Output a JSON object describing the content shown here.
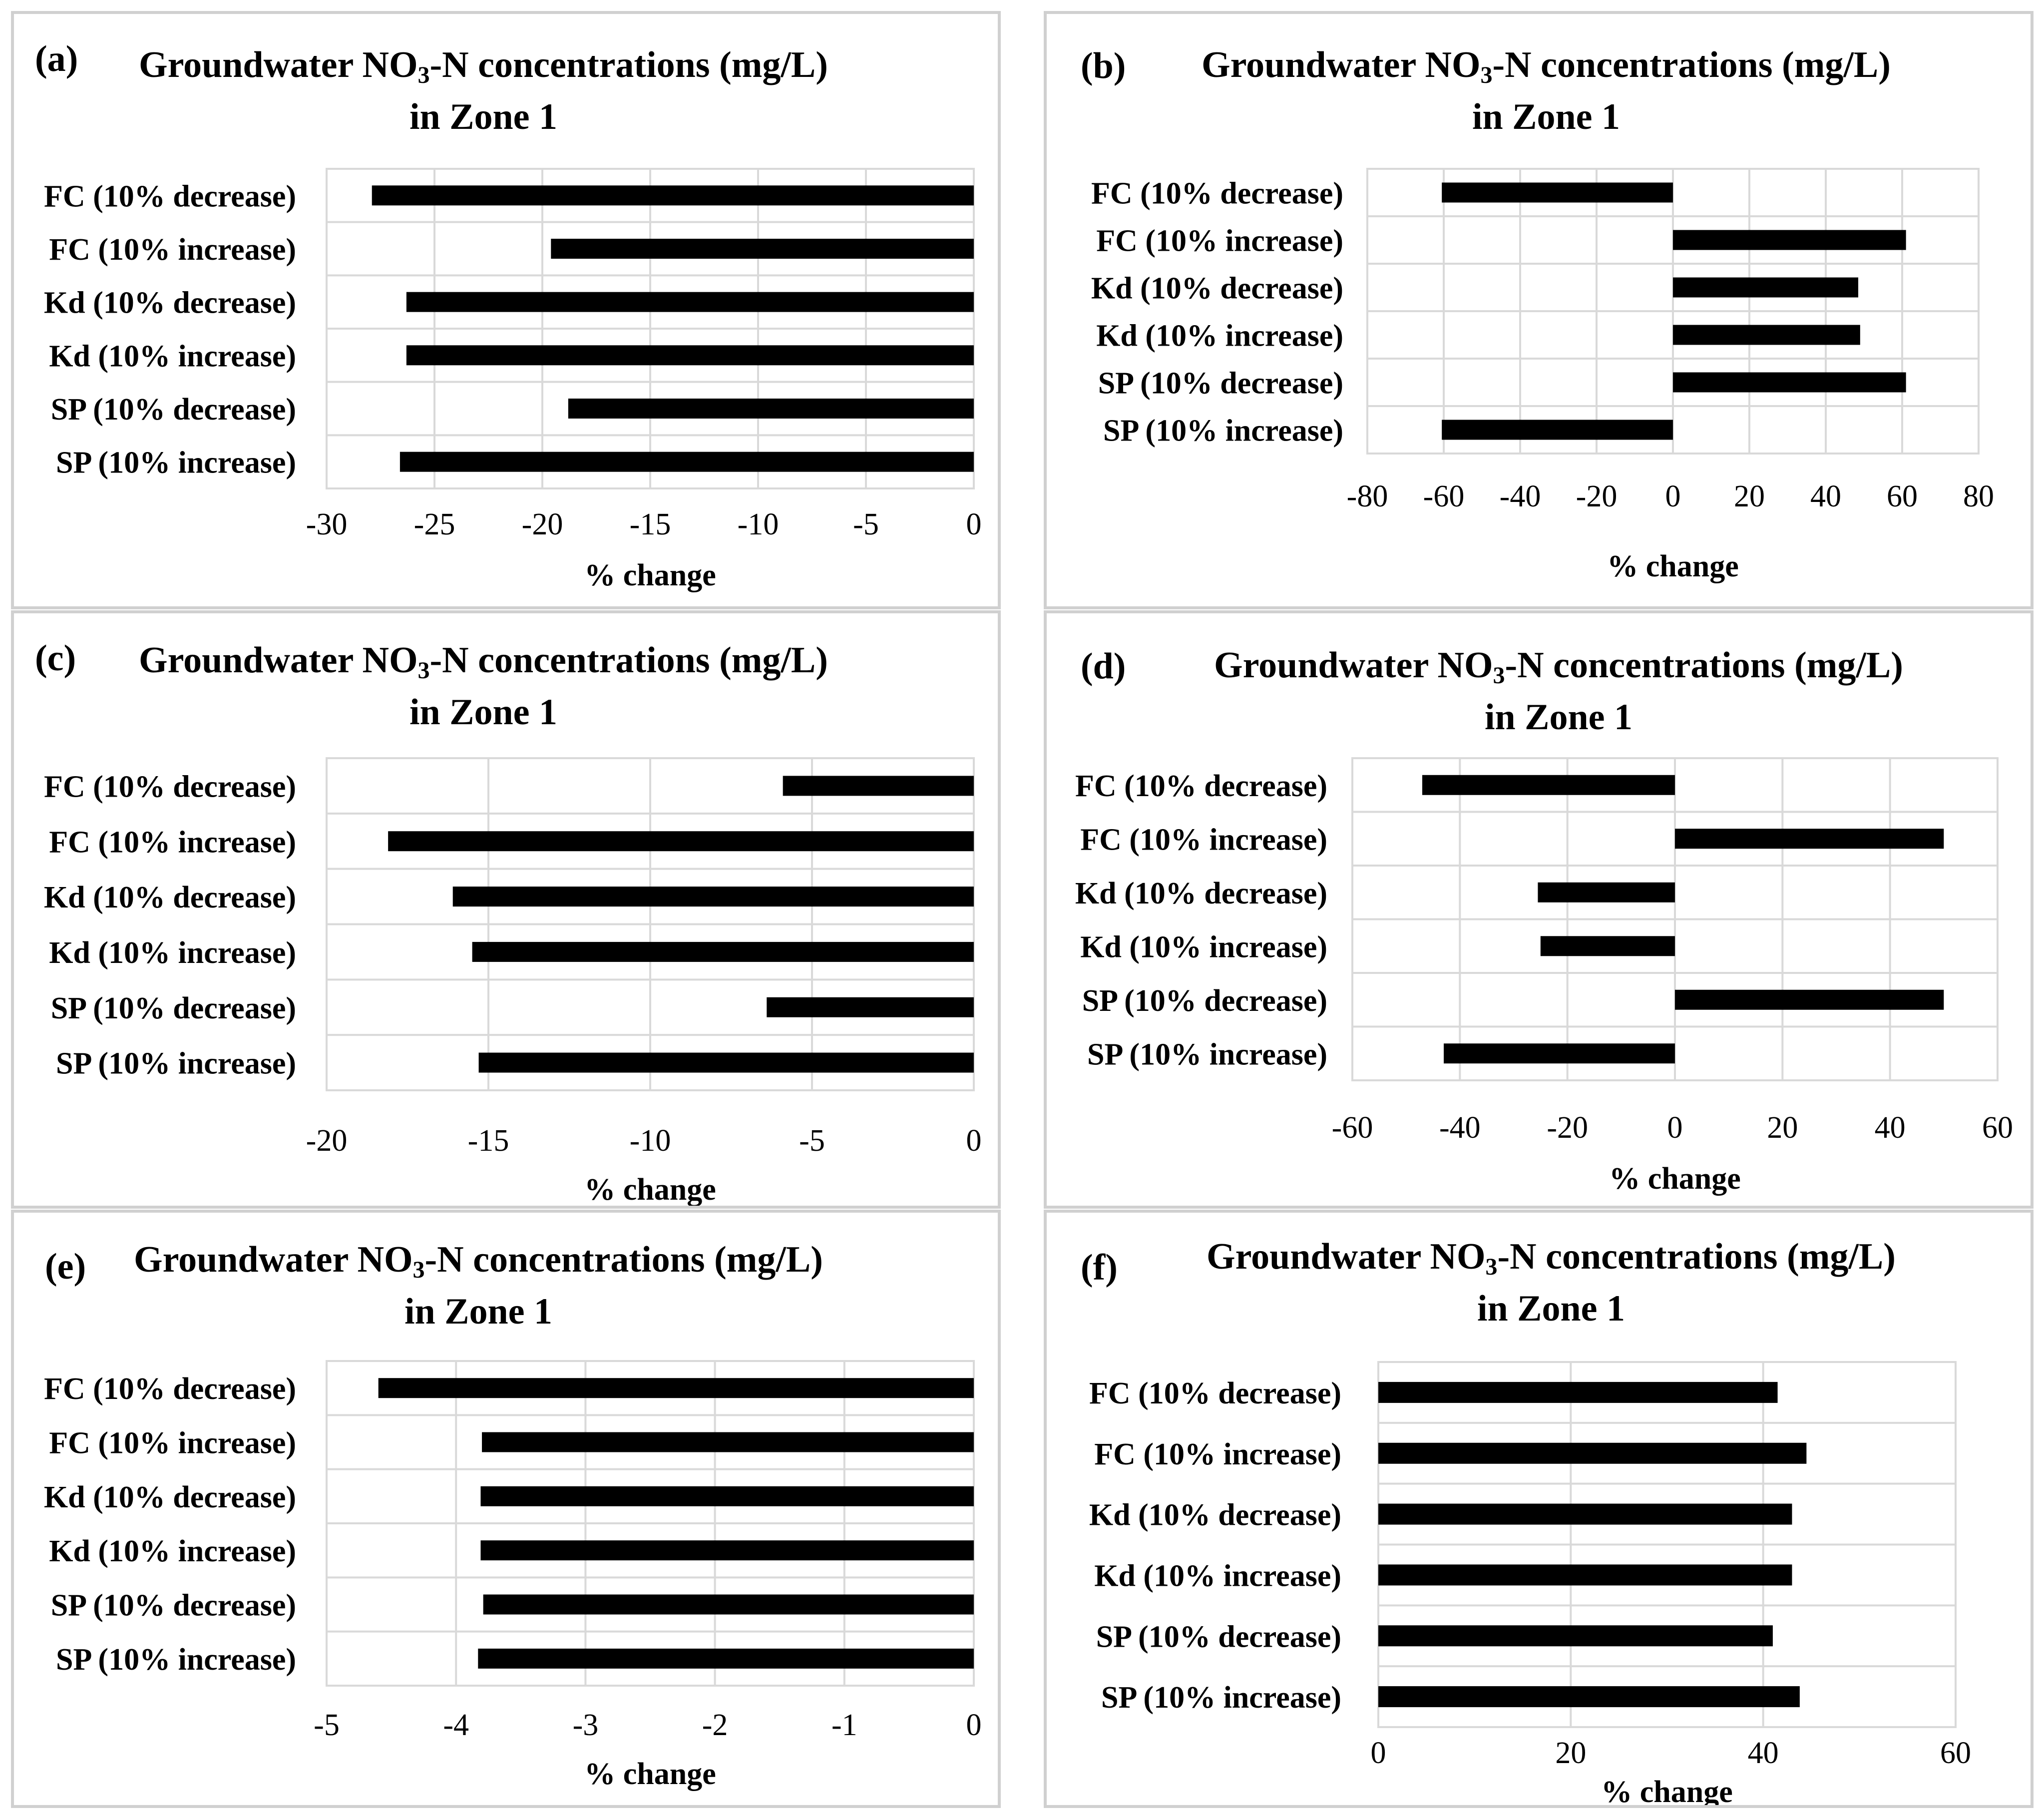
{
  "title": {
    "prefix": "Groundwater NO",
    "sub": "3",
    "suffix": "-N concentrations (mg/L)",
    "line2": "in Zone 1"
  },
  "categories": [
    "FC (10% decrease)",
    "FC (10% increase)",
    "Kd (10% decrease)",
    "Kd (10% increase)",
    "SP (10% decrease)",
    "SP (10% increase)"
  ],
  "xlabel": "% change",
  "colors": {
    "bar": "#000000",
    "grid": "#d9d9d9"
  },
  "panels": [
    {
      "label": "(a)"
    },
    {
      "label": "(b)"
    },
    {
      "label": "(c)"
    },
    {
      "label": "(d)"
    },
    {
      "label": "(e)"
    },
    {
      "label": "(f)"
    }
  ],
  "chart_data": [
    {
      "type": "bar",
      "orientation": "horizontal",
      "panel": "(a)",
      "title": "Groundwater NO3-N concentrations (mg/L) in Zone 1",
      "xlabel": "% change",
      "categories": [
        "FC (10% decrease)",
        "FC (10% increase)",
        "Kd (10% decrease)",
        "Kd (10% increase)",
        "SP (10% decrease)",
        "SP (10% increase)"
      ],
      "values": [
        -27.9,
        -19.6,
        -26.3,
        -26.3,
        -18.8,
        -26.6
      ],
      "xlim": [
        -30,
        0
      ],
      "ticks": [
        -30,
        -25,
        -20,
        -15,
        -10,
        -5,
        0
      ],
      "tick_labels": [
        "-30",
        "-25",
        "-20",
        "-15",
        "-10",
        "-5",
        "0"
      ]
    },
    {
      "type": "bar",
      "orientation": "horizontal",
      "panel": "(b)",
      "title": "Groundwater NO3-N concentrations (mg/L) in Zone 1",
      "xlabel": "% change",
      "categories": [
        "FC (10% decrease)",
        "FC (10% increase)",
        "Kd (10% decrease)",
        "Kd (10% increase)",
        "SP (10% decrease)",
        "SP (10% increase)"
      ],
      "values": [
        -60.5,
        61,
        48.5,
        49,
        61,
        -60.5
      ],
      "xlim": [
        -80,
        80
      ],
      "ticks": [
        -80,
        -60,
        -40,
        -20,
        0,
        20,
        40,
        60,
        80
      ],
      "tick_labels": [
        "-80",
        "-60",
        "-40",
        "-20",
        "0",
        "20",
        "40",
        "60",
        "80"
      ]
    },
    {
      "type": "bar",
      "orientation": "horizontal",
      "panel": "(c)",
      "title": "Groundwater NO3-N concentrations (mg/L) in Zone 1",
      "xlabel": "% change",
      "categories": [
        "FC (10% decrease)",
        "FC (10% increase)",
        "Kd (10% decrease)",
        "Kd (10% increase)",
        "SP (10% decrease)",
        "SP (10% increase)"
      ],
      "values": [
        -5.9,
        -18.1,
        -16.1,
        -15.5,
        -6.4,
        -15.3
      ],
      "xlim": [
        -20,
        0
      ],
      "ticks": [
        -20,
        -15,
        -10,
        -5,
        0
      ],
      "tick_labels": [
        "-20",
        "-15",
        "-10",
        "-5",
        "0"
      ]
    },
    {
      "type": "bar",
      "orientation": "horizontal",
      "panel": "(d)",
      "title": "Groundwater NO3-N concentrations (mg/L) in Zone 1",
      "xlabel": "% change",
      "categories": [
        "FC (10% decrease)",
        "FC (10% increase)",
        "Kd (10% decrease)",
        "Kd (10% increase)",
        "SP (10% decrease)",
        "SP (10% increase)"
      ],
      "values": [
        -47,
        50,
        -25.5,
        -25,
        50,
        -43
      ],
      "xlim": [
        -60,
        60
      ],
      "ticks": [
        -60,
        -40,
        -20,
        0,
        20,
        40,
        60
      ],
      "tick_labels": [
        "-60",
        "-40",
        "-20",
        "0",
        "20",
        "40",
        "60"
      ]
    },
    {
      "type": "bar",
      "orientation": "horizontal",
      "panel": "(e)",
      "title": "Groundwater NO3-N concentrations (mg/L) in Zone 1",
      "xlabel": "% change",
      "categories": [
        "FC (10% decrease)",
        "FC (10% increase)",
        "Kd (10% decrease)",
        "Kd (10% increase)",
        "SP (10% decrease)",
        "SP (10% increase)"
      ],
      "values": [
        -4.6,
        -3.8,
        -3.81,
        -3.81,
        -3.79,
        -3.83
      ],
      "xlim": [
        -5,
        0
      ],
      "ticks": [
        -5,
        -4,
        -3,
        -2,
        -1,
        0
      ],
      "tick_labels": [
        "-5",
        "-4",
        "-3",
        "-2",
        "-1",
        "0"
      ]
    },
    {
      "type": "bar",
      "orientation": "horizontal",
      "panel": "(f)",
      "title": "Groundwater NO3-N concentrations (mg/L) in Zone 1",
      "xlabel": "% change",
      "categories": [
        "FC (10% decrease)",
        "FC (10% increase)",
        "Kd (10% decrease)",
        "Kd (10% increase)",
        "SP (10% decrease)",
        "SP (10% increase)"
      ],
      "values": [
        41.5,
        44.5,
        43,
        43,
        41,
        43.8
      ],
      "xlim": [
        0,
        60
      ],
      "ticks": [
        0,
        20,
        40,
        60
      ],
      "tick_labels": [
        "0",
        "20",
        "40",
        "60"
      ]
    }
  ]
}
